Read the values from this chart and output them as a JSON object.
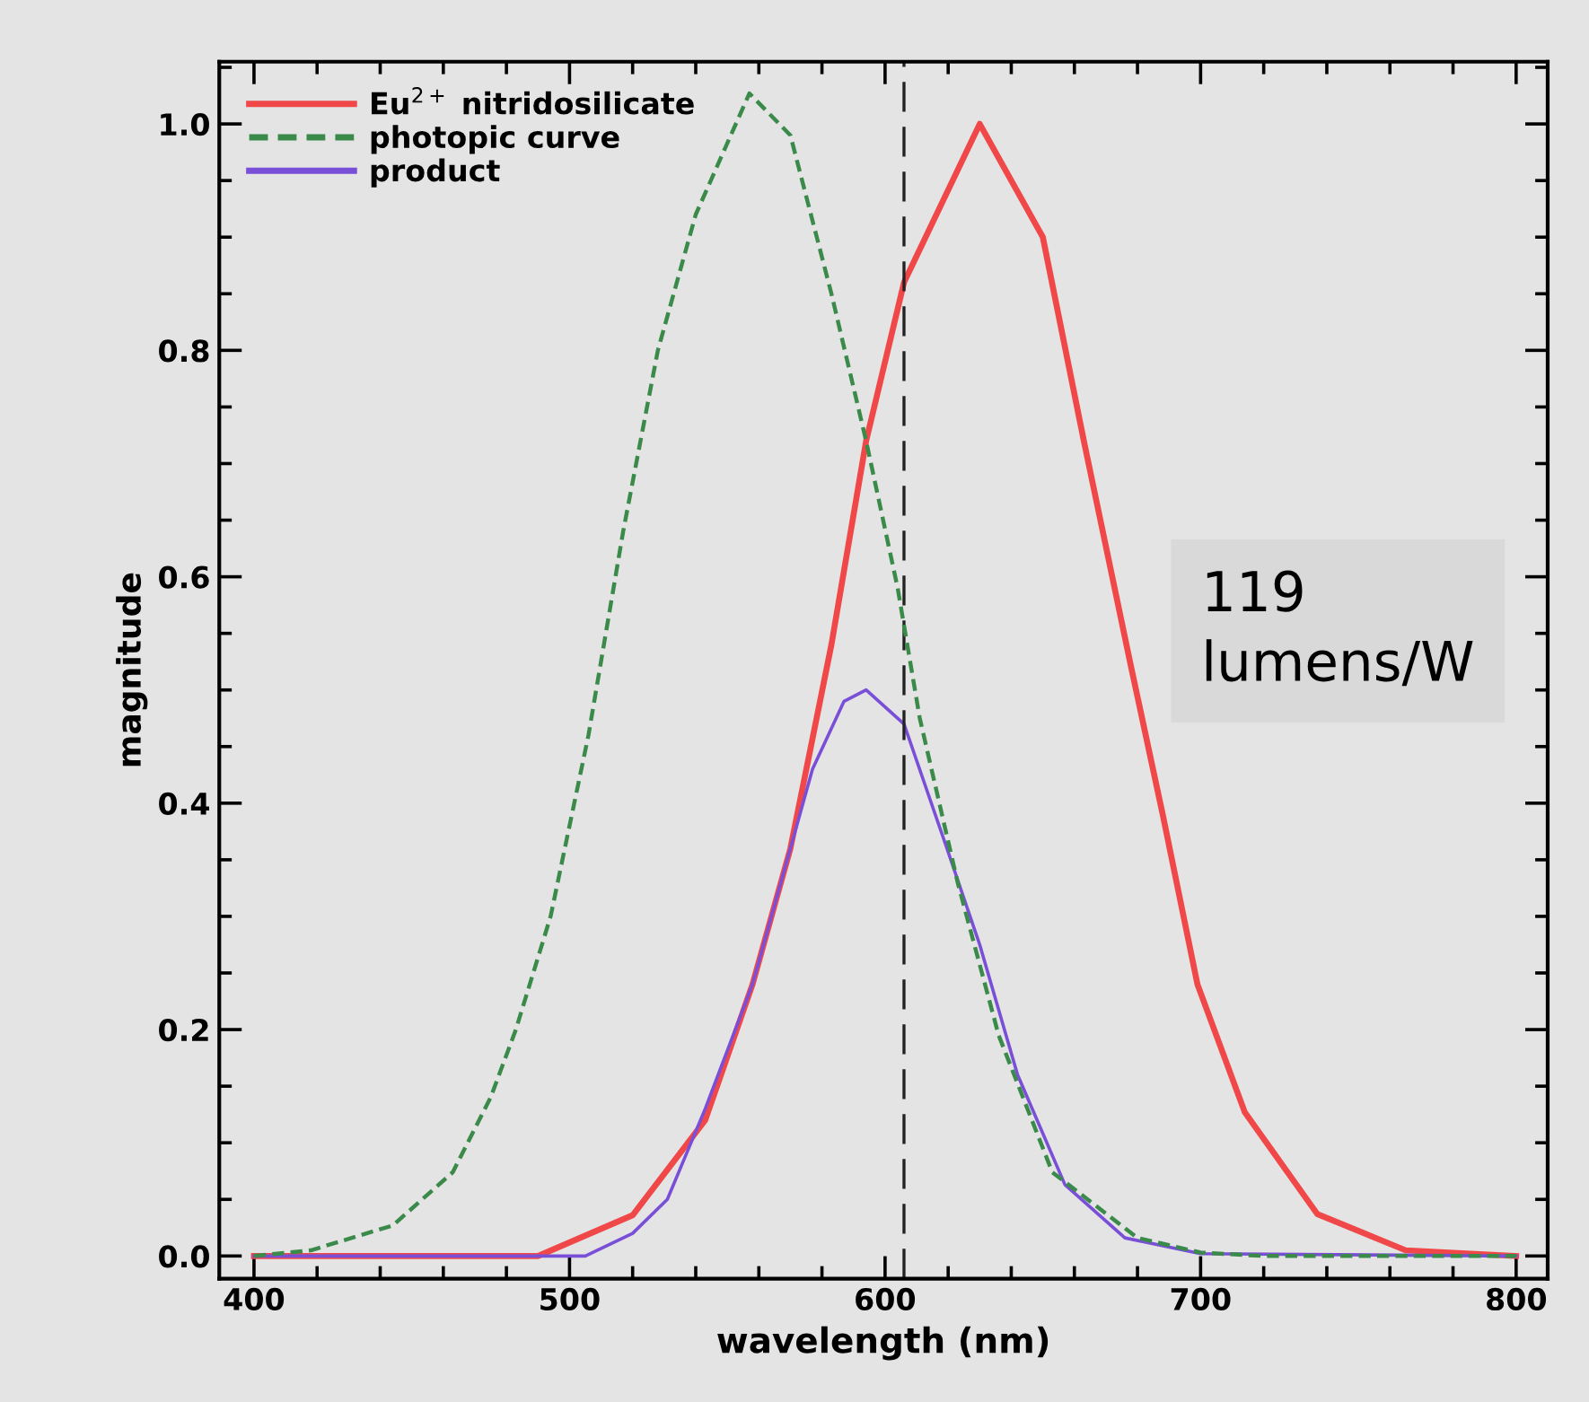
{
  "chart_data": {
    "type": "line",
    "xlabel": "wavelength (nm)",
    "ylabel": "magnitude",
    "xlim": [
      389,
      810
    ],
    "ylim": [
      -0.02,
      1.055
    ],
    "xticks": [
      400,
      500,
      600,
      700,
      800
    ],
    "yticks": [
      {
        "value": 0,
        "label": "0.0"
      },
      {
        "value": 0.2,
        "label": "0.2"
      },
      {
        "value": 0.4,
        "label": "0.4"
      },
      {
        "value": 0.6,
        "label": "0.6"
      },
      {
        "value": 0.8,
        "label": "0.8"
      },
      {
        "value": 1.0,
        "label": "1.0"
      }
    ],
    "grid": false,
    "legend": "top left",
    "marker": "none",
    "series": [
      {
        "name": "Eu$^{2+}$ nitridosilicate",
        "color": "#f04848",
        "line_style": "solid",
        "x": [
          400,
          490,
          520,
          543,
          558,
          570,
          583,
          594,
          606,
          630,
          650,
          663,
          678,
          688,
          699,
          714,
          737,
          765,
          800
        ],
        "values": [
          0,
          0,
          0.036,
          0.12,
          0.24,
          0.36,
          0.54,
          0.72,
          0.86,
          1.0,
          0.9,
          0.72,
          0.52,
          0.39,
          0.24,
          0.127,
          0.037,
          0.005,
          0
        ]
      },
      {
        "name": "photopic curve",
        "color": "#3a8a4a",
        "line_style": "dashed",
        "x": [
          400,
          418,
          444,
          463,
          475,
          483,
          494,
          506,
          517,
          528,
          540,
          557,
          570,
          583,
          594,
          604,
          611,
          623,
          636,
          653,
          680,
          700,
          720,
          800
        ],
        "values": [
          0,
          0.005,
          0.027,
          0.074,
          0.14,
          0.2,
          0.3,
          0.46,
          0.64,
          0.8,
          0.92,
          1.027,
          0.99,
          0.85,
          0.72,
          0.59,
          0.475,
          0.33,
          0.195,
          0.074,
          0.016,
          0.003,
          0,
          0
        ]
      },
      {
        "name": "product",
        "color": "#7a4fd8",
        "line_style": "solid",
        "x": [
          400,
          505,
          520,
          531,
          543,
          558,
          570,
          577,
          587,
          594,
          606,
          619,
          630,
          642,
          657,
          676,
          700,
          800
        ],
        "values": [
          0,
          0,
          0.02,
          0.05,
          0.13,
          0.24,
          0.36,
          0.43,
          0.49,
          0.5,
          0.47,
          0.365,
          0.275,
          0.16,
          0.063,
          0.016,
          0.002,
          0
        ]
      }
    ],
    "ref_lines": [
      {
        "axis": "x",
        "value": 606,
        "color": "#222222",
        "line_style": "dashed"
      }
    ],
    "annotations": [
      "119\nlumens/W"
    ]
  }
}
